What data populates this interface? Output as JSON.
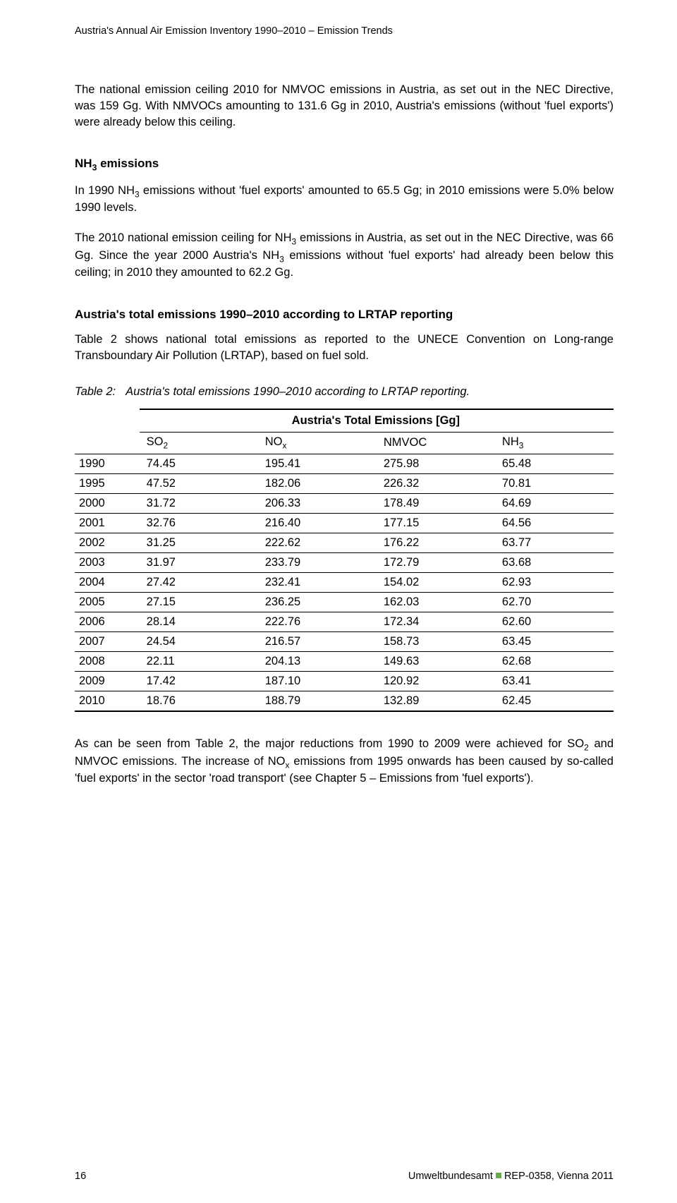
{
  "header": "Austria's Annual Air Emission Inventory 1990–2010 – Emission Trends",
  "p1": "The national emission ceiling 2010 for NMVOC emissions in Austria, as set out in the NEC Directive, was 159 Gg. With NMVOCs amounting to 131.6 Gg in 2010, Austria's emissions (without 'fuel exports') were already below this ceiling.",
  "h1_html": "NH<sub>3</sub> emissions",
  "p2_html": "In 1990 NH<sub>3</sub> emissions without 'fuel exports' amounted to 65.5 Gg; in 2010 emissions were 5.0% below 1990 levels.",
  "p3_html": "The 2010 national emission ceiling for NH<sub>3</sub> emissions in Austria, as set out in the NEC Directive, was 66 Gg. Since the year 2000 Austria's NH<sub>3</sub> emissions without 'fuel exports' had already been below this ceiling; in 2010 they amounted to 62.2 Gg.",
  "h2": "Austria's total emissions 1990–2010 according to LRTAP reporting",
  "p4": "Table 2 shows national total emissions as reported to the UNECE Convention on Long-range Transboundary Air Pollution (LRTAP), based on fuel sold.",
  "caption_label": "Table 2:",
  "caption_text": "Austria's total emissions 1990–2010 according to LRTAP reporting.",
  "table": {
    "super_header": "Austria's Total Emissions [Gg]",
    "columns_html": [
      "",
      "SO<sub>2</sub>",
      "NO<sub>x</sub>",
      "NMVOC",
      "NH<sub>3</sub>"
    ],
    "rows": [
      [
        "1990",
        "74.45",
        "195.41",
        "275.98",
        "65.48"
      ],
      [
        "1995",
        "47.52",
        "182.06",
        "226.32",
        "70.81"
      ],
      [
        "2000",
        "31.72",
        "206.33",
        "178.49",
        "64.69"
      ],
      [
        "2001",
        "32.76",
        "216.40",
        "177.15",
        "64.56"
      ],
      [
        "2002",
        "31.25",
        "222.62",
        "176.22",
        "63.77"
      ],
      [
        "2003",
        "31.97",
        "233.79",
        "172.79",
        "63.68"
      ],
      [
        "2004",
        "27.42",
        "232.41",
        "154.02",
        "62.93"
      ],
      [
        "2005",
        "27.15",
        "236.25",
        "162.03",
        "62.70"
      ],
      [
        "2006",
        "28.14",
        "222.76",
        "172.34",
        "62.60"
      ],
      [
        "2007",
        "24.54",
        "216.57",
        "158.73",
        "63.45"
      ],
      [
        "2008",
        "22.11",
        "204.13",
        "149.63",
        "62.68"
      ],
      [
        "2009",
        "17.42",
        "187.10",
        "120.92",
        "63.41"
      ],
      [
        "2010",
        "18.76",
        "188.79",
        "132.89",
        "62.45"
      ]
    ]
  },
  "p5_html": "As can be seen from Table 2, the major reductions from 1990 to 2009 were achieved for SO<sub>2</sub> and NMVOC emissions. The increase of NO<sub>x</sub> emissions from 1995 onwards has been caused by so-called 'fuel exports' in the sector 'road transport' (see Chapter 5 – Emissions from 'fuel exports').",
  "footer": {
    "page": "16",
    "org": "Umweltbundesamt",
    "ref": "REP-0358, Vienna 2011"
  }
}
